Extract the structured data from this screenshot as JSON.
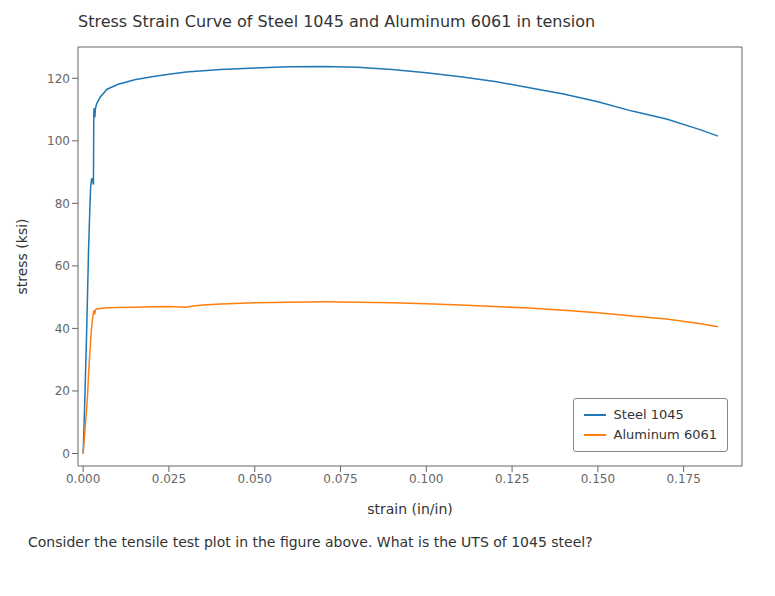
{
  "chart_data": {
    "type": "line",
    "title": "Stress Strain Curve of Steel 1045 and Aluminum 6061 in tension",
    "xlabel": "strain (in/in)",
    "ylabel": "stress (ksi)",
    "caption": "Consider the tensile test plot in the figure above. What is the UTS of 1045 steel?",
    "xlim": [
      -0.0015,
      0.192
    ],
    "ylim": [
      -4,
      130
    ],
    "xticks": [
      {
        "value": 0.0,
        "label": "0.000"
      },
      0.025,
      {
        "value": 0.05,
        "label": "0.050"
      },
      0.075,
      {
        "value": 0.1,
        "label": "0.100"
      },
      0.125,
      {
        "value": 0.15,
        "label": "0.150"
      },
      0.175
    ],
    "yticks": [
      0,
      20,
      40,
      60,
      80,
      100,
      120
    ],
    "grid": false,
    "legend": "lower right",
    "series": [
      {
        "name": "Steel 1045",
        "color": "#1f77b4",
        "x": [
          0.0,
          0.0003,
          0.0006,
          0.001,
          0.0013,
          0.0016,
          0.002,
          0.0022,
          0.0025,
          0.0028,
          0.003,
          0.0031,
          0.0032,
          0.0033,
          0.0034,
          0.0036,
          0.004,
          0.005,
          0.007,
          0.01,
          0.015,
          0.02,
          0.025,
          0.03,
          0.035,
          0.04,
          0.05,
          0.06,
          0.07,
          0.08,
          0.09,
          0.1,
          0.11,
          0.12,
          0.13,
          0.14,
          0.15,
          0.16,
          0.17,
          0.18,
          0.185
        ],
        "values": [
          0.0,
          10.0,
          22.0,
          38.0,
          52.0,
          66.0,
          80.0,
          85.5,
          88.0,
          87.0,
          86.0,
          108.5,
          110.5,
          109.0,
          107.5,
          110.5,
          112.0,
          114.0,
          116.5,
          118.0,
          119.5,
          120.5,
          121.3,
          122.0,
          122.4,
          122.8,
          123.3,
          123.7,
          123.8,
          123.5,
          122.8,
          121.8,
          120.5,
          119.0,
          117.0,
          115.0,
          112.5,
          109.5,
          107.0,
          103.5,
          101.5
        ]
      },
      {
        "name": "Aluminum 6061",
        "color": "#ff7f0e",
        "x": [
          0.0,
          0.0003,
          0.0006,
          0.001,
          0.0013,
          0.0016,
          0.002,
          0.0023,
          0.0026,
          0.003,
          0.0032,
          0.0034,
          0.0036,
          0.004,
          0.006,
          0.008,
          0.01,
          0.015,
          0.02,
          0.025,
          0.03,
          0.032,
          0.035,
          0.04,
          0.05,
          0.06,
          0.07,
          0.08,
          0.09,
          0.1,
          0.11,
          0.12,
          0.13,
          0.14,
          0.15,
          0.16,
          0.17,
          0.18,
          0.185
        ],
        "values": [
          0.0,
          4.0,
          8.5,
          14.0,
          19.0,
          26.0,
          33.0,
          38.0,
          42.0,
          45.0,
          45.8,
          44.5,
          46.0,
          46.2,
          46.5,
          46.6,
          46.7,
          46.8,
          46.9,
          47.0,
          46.8,
          47.2,
          47.5,
          47.8,
          48.2,
          48.4,
          48.5,
          48.4,
          48.2,
          47.9,
          47.5,
          47.0,
          46.5,
          45.8,
          45.0,
          44.0,
          43.0,
          41.5,
          40.5
        ]
      }
    ]
  }
}
